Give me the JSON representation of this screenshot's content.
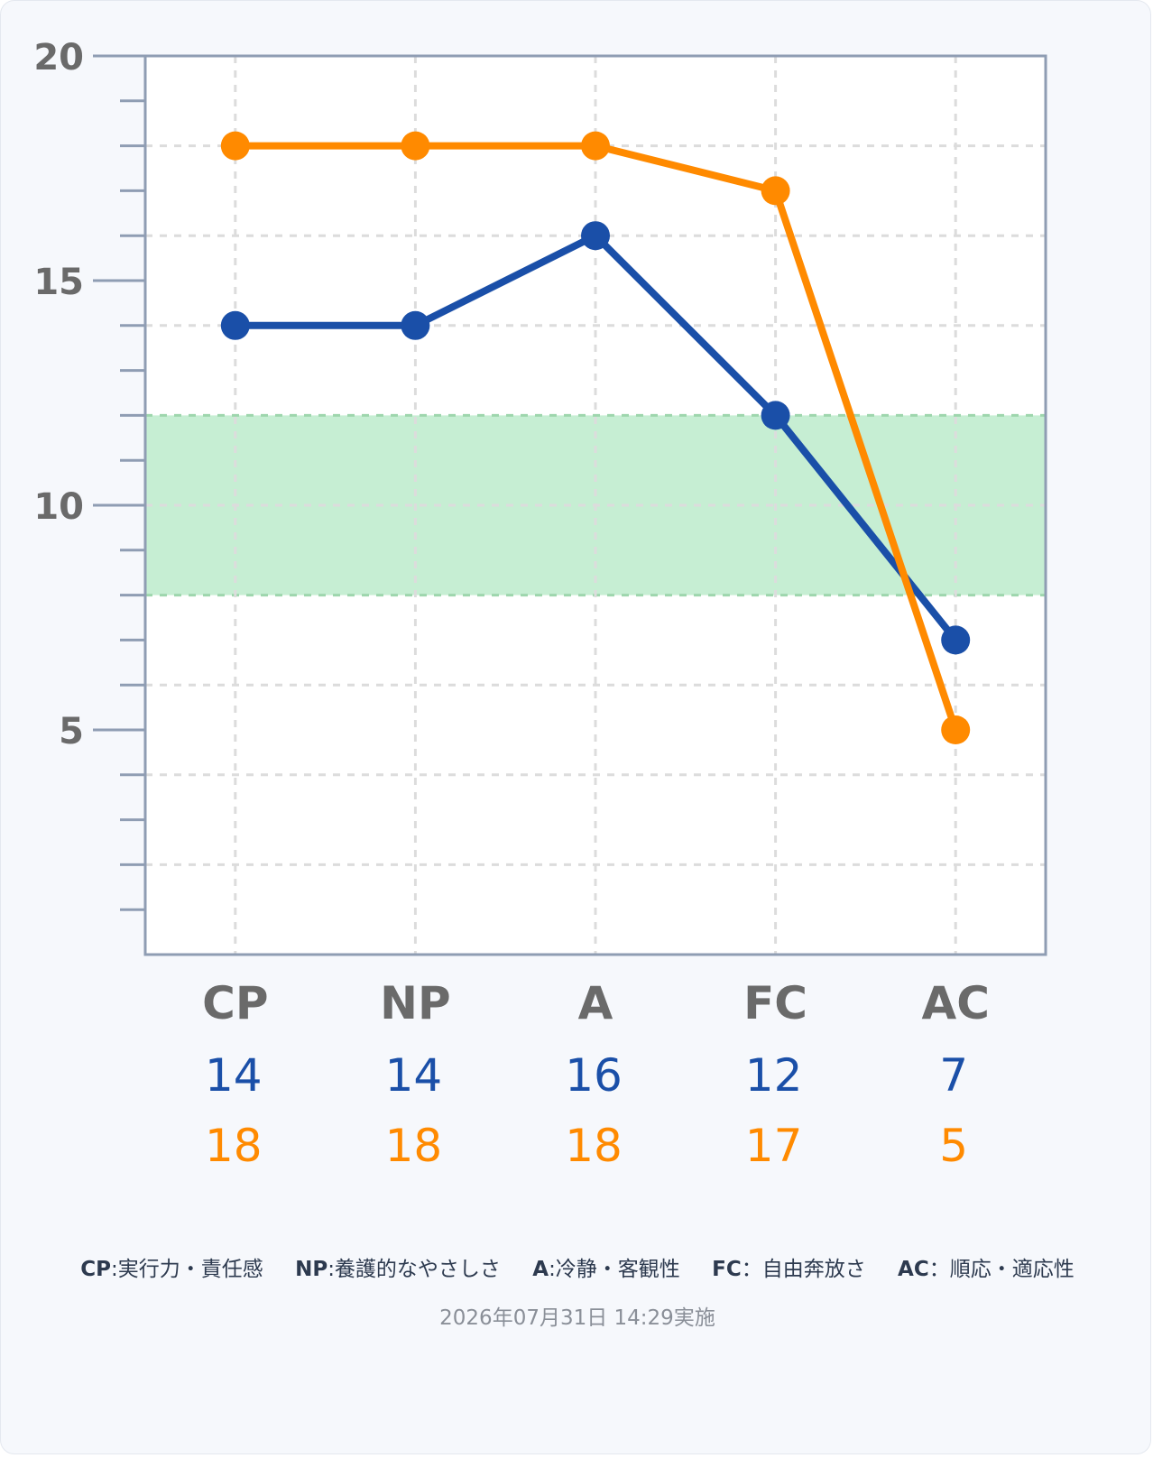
{
  "chart_data": {
    "type": "line",
    "categories": [
      "CP",
      "NP",
      "A",
      "FC",
      "AC"
    ],
    "series": [
      {
        "color": "#1a4fa8",
        "values": [
          14,
          14,
          16,
          12,
          7
        ]
      },
      {
        "color": "#ff8a00",
        "values": [
          18,
          18,
          18,
          17,
          5
        ]
      }
    ],
    "ylim": [
      0,
      20
    ],
    "yticks": [
      5,
      10,
      15,
      20
    ],
    "yminor_step": 1,
    "grid_step": 2,
    "grid": true,
    "normal_range": {
      "from": 8,
      "to": 12,
      "color": "#c6eed3"
    }
  },
  "legend": [
    {
      "key": "CP",
      "desc": ":実行力・責任感"
    },
    {
      "key": "NP",
      "desc": ":養護的なやさしさ"
    },
    {
      "key": "A",
      "desc": ":冷静・客観性"
    },
    {
      "key": "FC",
      "desc": "：自由奔放さ"
    },
    {
      "key": "AC",
      "desc": "：順応・適応性"
    }
  ],
  "date": "2026年07月31日 14:29実施",
  "colors": {
    "axis": "#8f9db3",
    "tick_label": "#6a6a6a",
    "grid": "#dcdcdc"
  }
}
